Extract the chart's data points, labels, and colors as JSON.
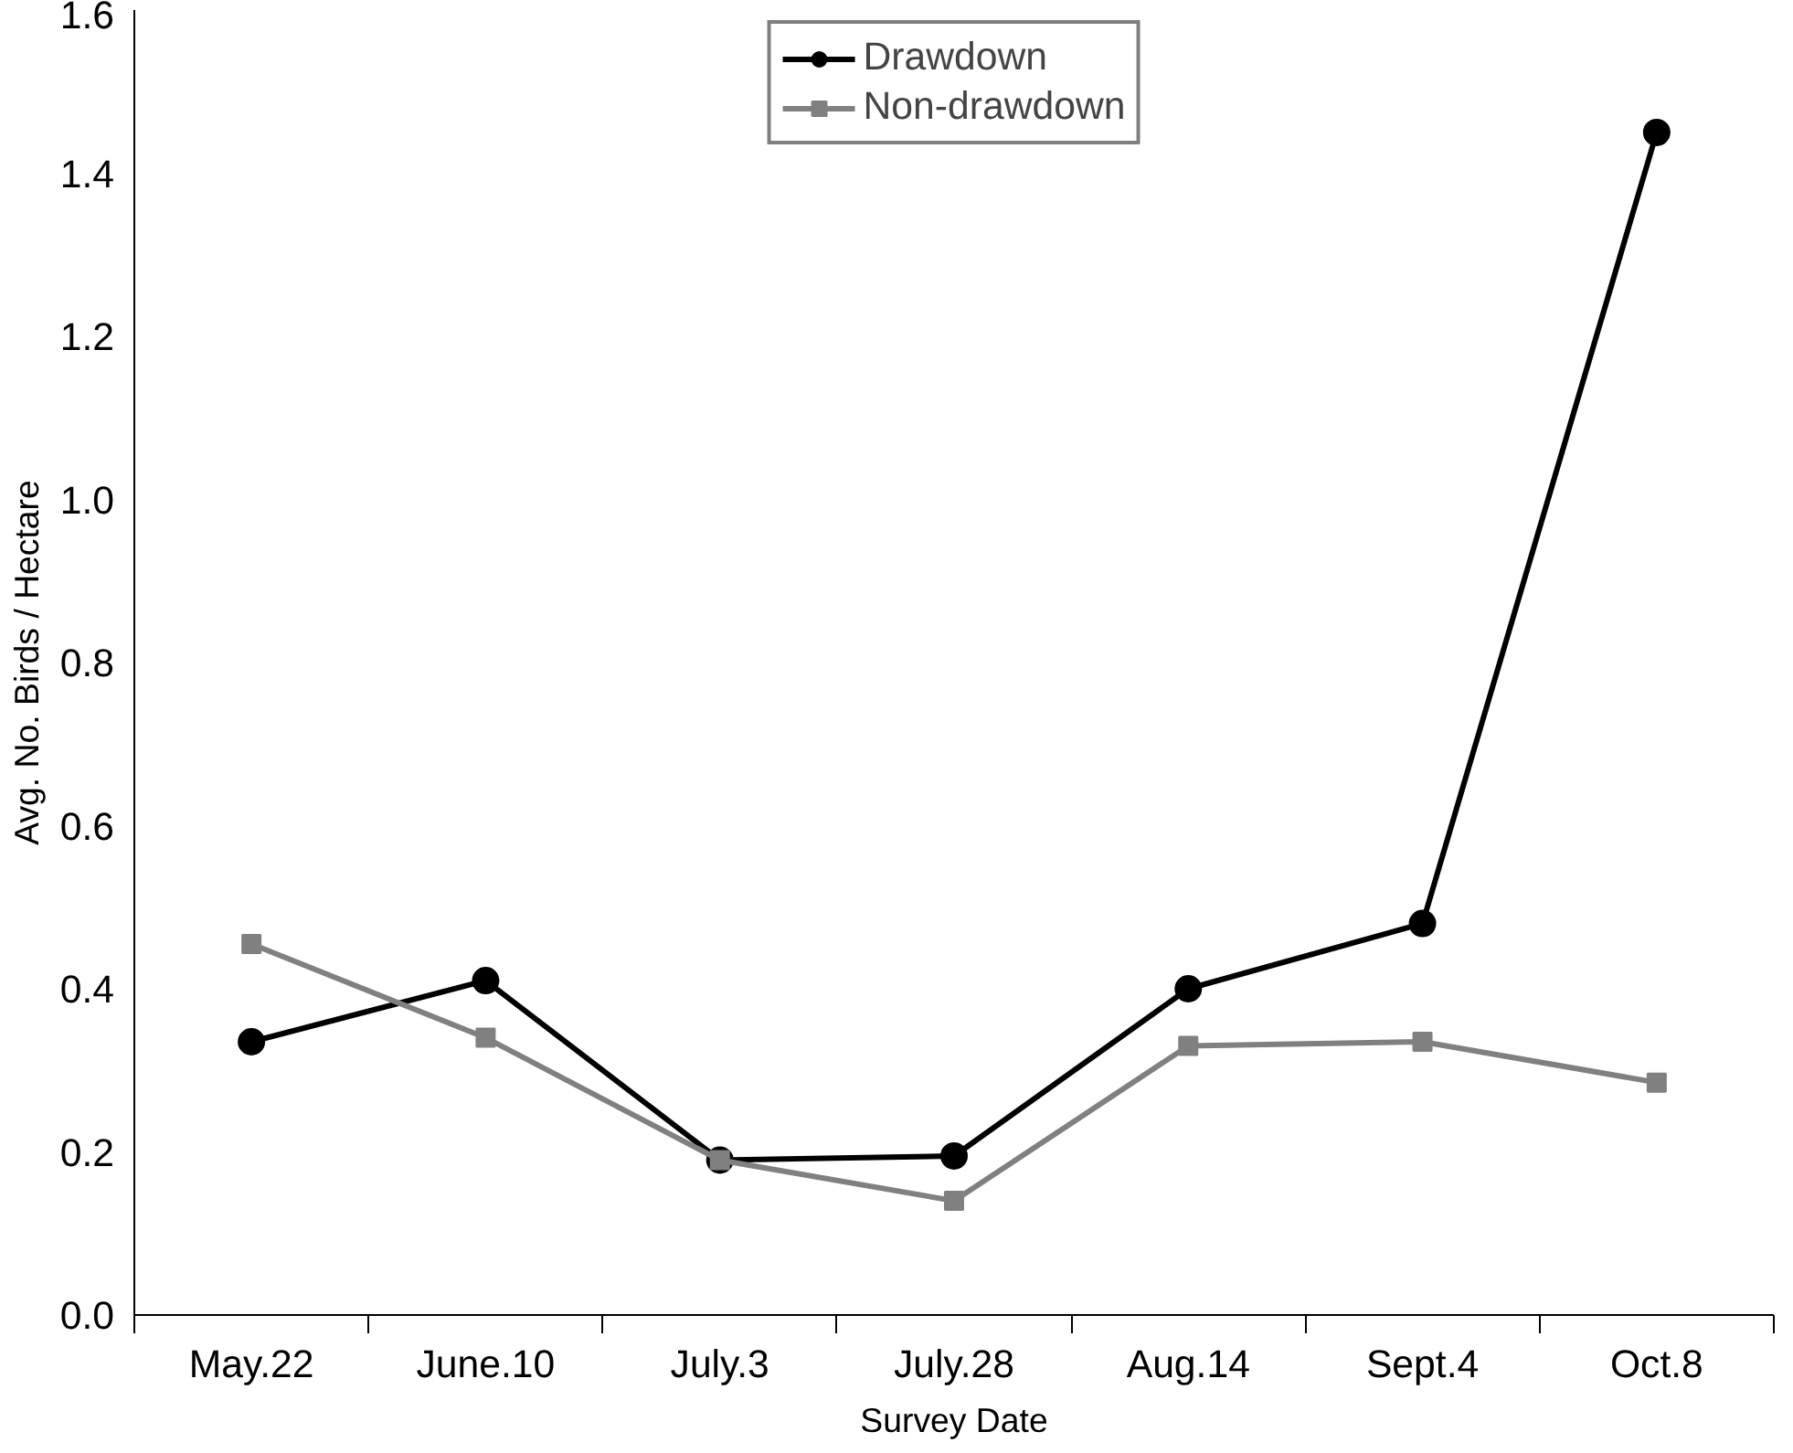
{
  "chart_data": {
    "type": "line",
    "xlabel": "Survey Date",
    "ylabel": "Avg. No. Birds / Hectare",
    "categories": [
      "May.22",
      "June.10",
      "July.3",
      "July.28",
      "Aug.14",
      "Sept.4",
      "Oct.8"
    ],
    "series": [
      {
        "name": "Drawdown",
        "color": "#000000",
        "marker": "circle",
        "values": [
          0.335,
          0.41,
          0.19,
          0.195,
          0.4,
          0.48,
          1.45
        ]
      },
      {
        "name": "Non-drawdown",
        "color": "#808080",
        "marker": "square",
        "values": [
          0.455,
          0.34,
          0.19,
          0.14,
          0.33,
          0.335,
          0.285
        ]
      }
    ],
    "ylim": [
      0,
      1.6
    ],
    "yticks": [
      {
        "value": 0,
        "label": "0.0"
      },
      0.2,
      0.4,
      0.6,
      0.8,
      {
        "value": 1,
        "label": "1.0"
      },
      1.2,
      1.4,
      1.6
    ],
    "grid": false,
    "legend": "top",
    "line_style": "solid"
  }
}
